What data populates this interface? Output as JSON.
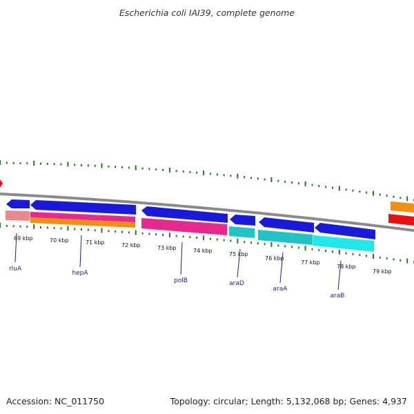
{
  "title": "Escherichia coli IAI39, complete genome",
  "footer": {
    "accession": "Accession: NC_011750",
    "summary": "Topology: circular; Length: 5,132,068 bp; Genes: 4,937"
  },
  "colors": {
    "backbone": "#8a8a8a",
    "ticks": "#1e7a1e",
    "gene_arrow": "#1a1adc",
    "label": "#1a1aa6",
    "feature_salmon": "#e88a8a",
    "feature_magenta": "#e8288c",
    "feature_orange": "#f09010",
    "feature_teal": "#20c4c4",
    "feature_cyan": "#20e8e8",
    "feature_red": "#e81010"
  },
  "scale": {
    "labels": [
      "69 kbp",
      "70 kbp",
      "71 kbp",
      "72 kbp",
      "73 kbp",
      "74 kbp",
      "75 kbp",
      "76 kbp",
      "77 kbp",
      "78 kbp",
      "79 kbp"
    ]
  },
  "genes": [
    {
      "name": "rluA"
    },
    {
      "name": "hepA"
    },
    {
      "name": "polB"
    },
    {
      "name": "araD"
    },
    {
      "name": "araA"
    },
    {
      "name": "araB"
    }
  ]
}
